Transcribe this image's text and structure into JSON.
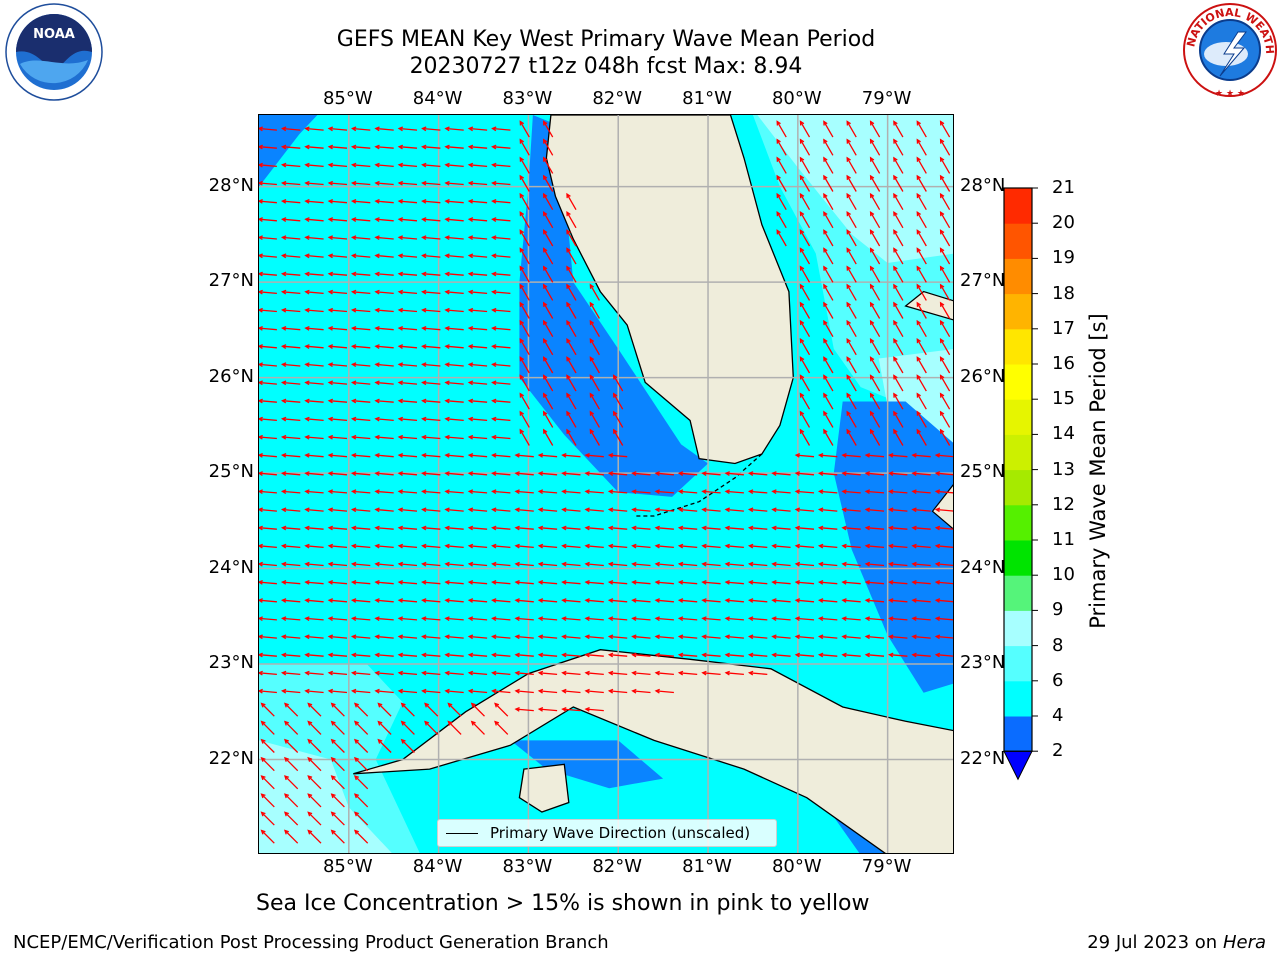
{
  "title": {
    "line1": "GEFS MEAN Key West Primary Wave Mean Period",
    "line2": "20230727 t12z 048h fcst   Max: 8.94"
  },
  "map": {
    "lon_labels": [
      "85°W",
      "84°W",
      "83°W",
      "82°W",
      "81°W",
      "80°W",
      "79°W"
    ],
    "lat_labels": [
      "28°N",
      "27°N",
      "26°N",
      "25°N",
      "24°N",
      "23°N",
      "22°N"
    ],
    "lon_range": [
      -86.0,
      -78.25
    ],
    "lat_range": [
      21.0,
      28.75
    ],
    "colors": {
      "land": "#efeddb",
      "coast": "#000000",
      "grid": "#b0b0b0",
      "arrow": "#ff0000",
      "band_2_4": "#0a84ff",
      "band_4_6": "#00ffff",
      "band_6_8": "#55ffff",
      "band_8_9": "#a7ffff"
    },
    "legend_label": "Primary Wave Direction (unscaled)"
  },
  "colorbar": {
    "label": "Primary Wave Mean Period [s]",
    "ticks": [
      "2",
      "4",
      "6",
      "8",
      "9",
      "10",
      "11",
      "12",
      "13",
      "14",
      "15",
      "16",
      "17",
      "18",
      "19",
      "20",
      "21"
    ],
    "colors": [
      "#0a6cff",
      "#00ffff",
      "#55ffff",
      "#a7ffff",
      "#55f47a",
      "#00e400",
      "#55f000",
      "#a6ea00",
      "#ccf000",
      "#e6f500",
      "#ffff00",
      "#ffe600",
      "#ffb400",
      "#ff8c00",
      "#ff5500",
      "#ff2a00",
      "#ff0000"
    ],
    "under_color": "#0000ff"
  },
  "note": "Sea Ice Concentration > 15% is shown in pink to yellow",
  "footer": {
    "left": "NCEP/EMC/Verification Post Processing Product Generation Branch",
    "right_date": "29 Jul 2023 on ",
    "right_host": "Hera"
  },
  "logos": {
    "noaa_text": "NOAA",
    "nws_text": "NATIONAL WEATHER SERVICE"
  }
}
